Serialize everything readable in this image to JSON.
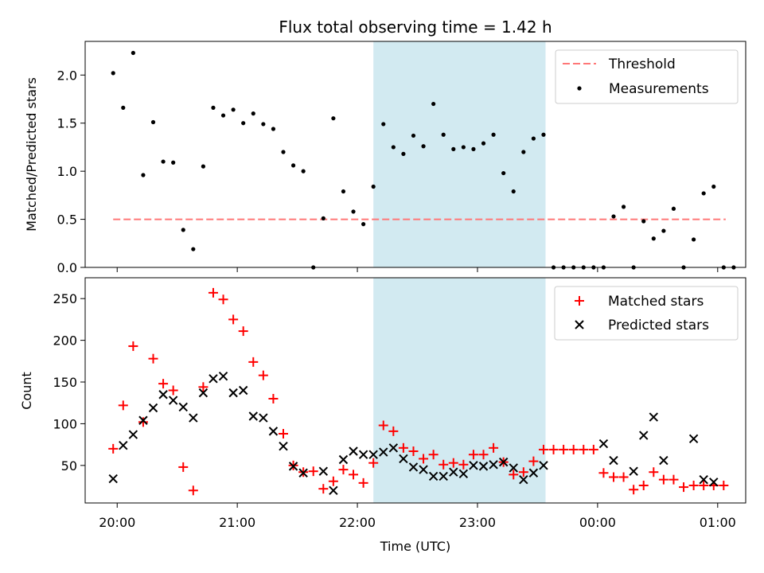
{
  "title": "Flux total observing time = 1.42 h",
  "colors": {
    "threshold": "#ff7777",
    "measurement": "#000000",
    "matched": "#ff0000",
    "predicted": "#000000",
    "shade": "#add8e6"
  },
  "chart_data": [
    {
      "type": "scatter",
      "ylabel": "Matched/Predicted stars",
      "ylim": [
        0,
        2.35
      ],
      "yticks": [
        "0.0",
        "0.5",
        "1.0",
        "1.5",
        "2.0"
      ],
      "xlim": [
        "19:44",
        "25:14"
      ],
      "xtick_labels": [
        "20:00",
        "21:00",
        "22:00",
        "23:00",
        "00:00",
        "01:00"
      ],
      "shaded_span": [
        "22:08",
        "23:34"
      ],
      "legend": {
        "position": "top-right",
        "entries": [
          "Threshold",
          "Measurements"
        ]
      },
      "threshold": {
        "name": "Threshold",
        "y": 0.5,
        "x": [
          "19:58",
          "25:04"
        ]
      },
      "series": [
        {
          "name": "Measurements",
          "points": [
            [
              "19:58",
              2.02
            ],
            [
              "20:03",
              1.66
            ],
            [
              "20:08",
              2.23
            ],
            [
              "20:13",
              0.96
            ],
            [
              "20:18",
              1.51
            ],
            [
              "20:23",
              1.1
            ],
            [
              "20:28",
              1.09
            ],
            [
              "20:33",
              0.39
            ],
            [
              "20:38",
              0.19
            ],
            [
              "20:43",
              1.05
            ],
            [
              "20:48",
              1.66
            ],
            [
              "20:53",
              1.58
            ],
            [
              "20:58",
              1.64
            ],
            [
              "21:03",
              1.5
            ],
            [
              "21:08",
              1.6
            ],
            [
              "21:13",
              1.49
            ],
            [
              "21:18",
              1.44
            ],
            [
              "21:23",
              1.2
            ],
            [
              "21:28",
              1.06
            ],
            [
              "21:33",
              1.0
            ],
            [
              "21:38",
              0.0
            ],
            [
              "21:43",
              0.51
            ],
            [
              "21:48",
              1.55
            ],
            [
              "21:53",
              0.79
            ],
            [
              "21:58",
              0.58
            ],
            [
              "22:03",
              0.45
            ],
            [
              "22:08",
              0.84
            ],
            [
              "22:13",
              1.49
            ],
            [
              "22:18",
              1.25
            ],
            [
              "22:23",
              1.18
            ],
            [
              "22:28",
              1.37
            ],
            [
              "22:33",
              1.26
            ],
            [
              "22:38",
              1.7
            ],
            [
              "22:43",
              1.38
            ],
            [
              "22:48",
              1.23
            ],
            [
              "22:53",
              1.25
            ],
            [
              "22:58",
              1.23
            ],
            [
              "23:03",
              1.29
            ],
            [
              "23:08",
              1.38
            ],
            [
              "23:13",
              0.98
            ],
            [
              "23:18",
              0.79
            ],
            [
              "23:23",
              1.2
            ],
            [
              "23:28",
              1.34
            ],
            [
              "23:33",
              1.38
            ],
            [
              "23:38",
              0.0
            ],
            [
              "23:43",
              0.0
            ],
            [
              "23:48",
              0.0
            ],
            [
              "23:53",
              0.0
            ],
            [
              "23:58",
              0.0
            ],
            [
              "24:03",
              0.0
            ],
            [
              "24:08",
              0.53
            ],
            [
              "24:13",
              0.63
            ],
            [
              "24:18",
              0.0
            ],
            [
              "24:23",
              0.48
            ],
            [
              "24:28",
              0.3
            ],
            [
              "24:33",
              0.38
            ],
            [
              "24:38",
              0.61
            ],
            [
              "24:43",
              0.0
            ],
            [
              "24:48",
              0.29
            ],
            [
              "24:53",
              0.77
            ],
            [
              "24:58",
              0.84
            ],
            [
              "25:03",
              0.0
            ],
            [
              "25:08",
              0.0
            ]
          ]
        }
      ]
    },
    {
      "type": "scatter",
      "ylabel": "Count",
      "xlabel": "Time (UTC)",
      "ylim": [
        5,
        275
      ],
      "yticks": [
        "50",
        "100",
        "150",
        "200",
        "250"
      ],
      "xlim": [
        "19:44",
        "25:14"
      ],
      "xtick_labels": [
        "20:00",
        "21:00",
        "22:00",
        "23:00",
        "00:00",
        "01:00"
      ],
      "shaded_span": [
        "22:08",
        "23:34"
      ],
      "legend": {
        "position": "top-right",
        "entries": [
          "Matched stars",
          "Predicted stars"
        ]
      },
      "series": [
        {
          "name": "Matched stars",
          "marker": "+",
          "points": [
            [
              "19:58",
              70
            ],
            [
              "20:03",
              122
            ],
            [
              "20:08",
              193
            ],
            [
              "20:13",
              102
            ],
            [
              "20:18",
              178
            ],
            [
              "20:23",
              148
            ],
            [
              "20:28",
              140
            ],
            [
              "20:33",
              48
            ],
            [
              "20:38",
              20
            ],
            [
              "20:43",
              144
            ],
            [
              "20:48",
              257
            ],
            [
              "20:53",
              249
            ],
            [
              "20:58",
              225
            ],
            [
              "21:03",
              211
            ],
            [
              "21:08",
              174
            ],
            [
              "21:13",
              158
            ],
            [
              "21:18",
              130
            ],
            [
              "21:23",
              88
            ],
            [
              "21:28",
              50
            ],
            [
              "21:33",
              42
            ],
            [
              "21:38",
              43
            ],
            [
              "21:43",
              22
            ],
            [
              "21:48",
              31
            ],
            [
              "21:53",
              45
            ],
            [
              "21:58",
              39
            ],
            [
              "22:03",
              29
            ],
            [
              "22:08",
              53
            ],
            [
              "22:13",
              98
            ],
            [
              "22:18",
              91
            ],
            [
              "22:23",
              71
            ],
            [
              "22:28",
              67
            ],
            [
              "22:33",
              58
            ],
            [
              "22:38",
              63
            ],
            [
              "22:43",
              51
            ],
            [
              "22:48",
              53
            ],
            [
              "22:53",
              51
            ],
            [
              "22:58",
              63
            ],
            [
              "23:03",
              63
            ],
            [
              "23:08",
              71
            ],
            [
              "23:13",
              54
            ],
            [
              "23:18",
              39
            ],
            [
              "23:23",
              42
            ],
            [
              "23:28",
              55
            ],
            [
              "23:33",
              69
            ],
            [
              "23:38",
              69
            ],
            [
              "23:43",
              69
            ],
            [
              "23:48",
              69
            ],
            [
              "23:53",
              69
            ],
            [
              "23:58",
              69
            ],
            [
              "24:03",
              41
            ],
            [
              "24:08",
              36
            ],
            [
              "24:13",
              36
            ],
            [
              "24:18",
              21
            ],
            [
              "24:23",
              26
            ],
            [
              "24:28",
              42
            ],
            [
              "24:33",
              33
            ],
            [
              "24:38",
              33
            ],
            [
              "24:43",
              24
            ],
            [
              "24:48",
              26
            ],
            [
              "24:53",
              26
            ],
            [
              "24:58",
              26
            ],
            [
              "25:03",
              26
            ]
          ]
        },
        {
          "name": "Predicted stars",
          "marker": "x",
          "points": [
            [
              "19:58",
              34
            ],
            [
              "20:03",
              74
            ],
            [
              "20:08",
              87
            ],
            [
              "20:13",
              104
            ],
            [
              "20:18",
              119
            ],
            [
              "20:23",
              135
            ],
            [
              "20:28",
              128
            ],
            [
              "20:33",
              120
            ],
            [
              "20:38",
              107
            ],
            [
              "20:43",
              137
            ],
            [
              "20:48",
              154
            ],
            [
              "20:53",
              157
            ],
            [
              "20:58",
              137
            ],
            [
              "21:03",
              140
            ],
            [
              "21:08",
              109
            ],
            [
              "21:13",
              107
            ],
            [
              "21:18",
              91
            ],
            [
              "21:23",
              73
            ],
            [
              "21:28",
              49
            ],
            [
              "21:33",
              41
            ],
            [
              "21:43",
              43
            ],
            [
              "21:48",
              20
            ],
            [
              "21:53",
              57
            ],
            [
              "21:58",
              67
            ],
            [
              "22:03",
              63
            ],
            [
              "22:08",
              63
            ],
            [
              "22:13",
              66
            ],
            [
              "22:18",
              71
            ],
            [
              "22:23",
              58
            ],
            [
              "22:28",
              48
            ],
            [
              "22:33",
              45
            ],
            [
              "22:38",
              37
            ],
            [
              "22:43",
              37
            ],
            [
              "22:48",
              42
            ],
            [
              "22:53",
              40
            ],
            [
              "22:58",
              50
            ],
            [
              "23:03",
              49
            ],
            [
              "23:08",
              51
            ],
            [
              "23:13",
              54
            ],
            [
              "23:18",
              47
            ],
            [
              "23:23",
              33
            ],
            [
              "23:28",
              41
            ],
            [
              "23:33",
              50
            ],
            [
              "24:03",
              76
            ],
            [
              "24:08",
              56
            ],
            [
              "24:18",
              43
            ],
            [
              "24:23",
              86
            ],
            [
              "24:28",
              108
            ],
            [
              "24:33",
              56
            ],
            [
              "24:48",
              82
            ],
            [
              "24:53",
              33
            ],
            [
              "24:58",
              30
            ]
          ]
        }
      ]
    }
  ]
}
